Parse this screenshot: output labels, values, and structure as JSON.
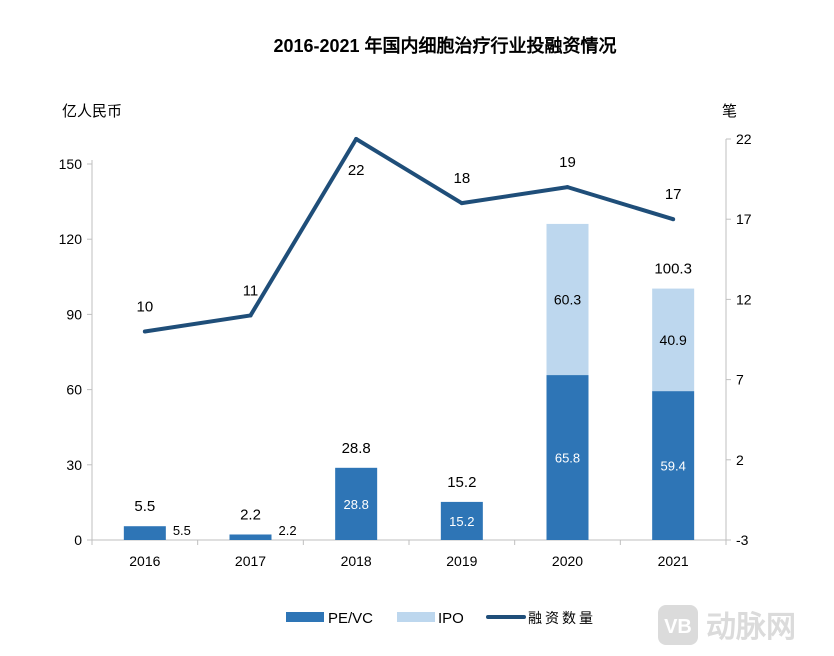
{
  "chart_data": {
    "type": "bar+line",
    "title": "2016-2021 年国内细胞治疗行业投融资情况",
    "ylabel_left": "亿人民币",
    "ylabel_right": "笔",
    "categories": [
      "2016",
      "2017",
      "2018",
      "2019",
      "2020",
      "2021"
    ],
    "ylim_left": [
      0,
      150
    ],
    "yticks_left": [
      "0",
      "30",
      "60",
      "90",
      "120",
      "150"
    ],
    "ylim_right": [
      -3,
      22
    ],
    "yticks_right": [
      "-3",
      "2",
      "7",
      "12",
      "17",
      "22"
    ],
    "series": [
      {
        "name": "PE/VC",
        "type": "bar",
        "stack": true,
        "color": "#2e75b6",
        "values": [
          5.5,
          2.2,
          28.8,
          15.2,
          65.8,
          59.4
        ]
      },
      {
        "name": "IPO",
        "type": "bar",
        "stack": true,
        "color": "#bdd7ee",
        "values": [
          0,
          0,
          0,
          0,
          60.3,
          40.9
        ]
      },
      {
        "name": "融资数量",
        "type": "line",
        "axis": "right",
        "color": "#1f4e79",
        "values": [
          10,
          11,
          22,
          18,
          19,
          17
        ]
      }
    ],
    "total_labels": [
      "5.5",
      "2.2",
      "28.8",
      "15.2",
      "",
      "100.3"
    ],
    "legend": "bottom",
    "grid": false
  },
  "watermark": "动脉网"
}
